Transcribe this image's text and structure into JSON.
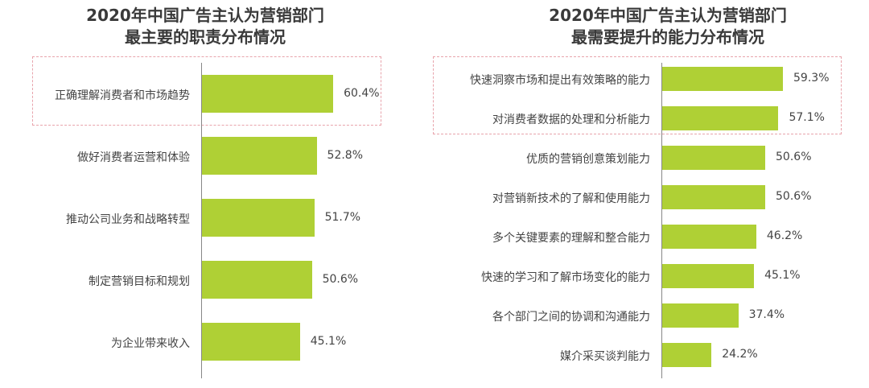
{
  "chart_data": [
    {
      "type": "bar",
      "orientation": "horizontal",
      "title": "2020年中国广告主认为营销部门\n最主要的职责分布情况",
      "title_lines": [
        "2020年中国广告主认为营销部门",
        "最主要的职责分布情况"
      ],
      "categories": [
        "正确理解消费者和市场趋势",
        "做好消费者运营和体验",
        "推动公司业务和战略转型",
        "制定营销目标和规划",
        "为企业带来收入"
      ],
      "values": [
        60.4,
        52.8,
        51.7,
        50.6,
        45.1
      ],
      "labels": [
        "60.4%",
        "52.8%",
        "51.7%",
        "50.6%",
        "45.1%"
      ],
      "highlighted": [
        "正确理解消费者和市场趋势"
      ],
      "unit": "%",
      "grid": false
    },
    {
      "type": "bar",
      "orientation": "horizontal",
      "title": "2020年中国广告主认为营销部门\n最需要提升的能力分布情况",
      "title_lines": [
        "2020年中国广告主认为营销部门",
        "最需要提升的能力分布情况"
      ],
      "categories": [
        "快速洞察市场和提出有效策略的能力",
        "对消费者数据的处理和分析能力",
        "优质的营销创意策划能力",
        "对营销新技术的了解和使用能力",
        "多个关键要素的理解和整合能力",
        "快速的学习和了解市场变化的能力",
        "各个部门之间的协调和沟通能力",
        "媒介采买谈判能力"
      ],
      "values": [
        59.3,
        57.1,
        50.6,
        50.6,
        46.2,
        45.1,
        37.4,
        24.2
      ],
      "labels": [
        "59.3%",
        "57.1%",
        "50.6%",
        "50.6%",
        "46.2%",
        "45.1%",
        "37.4%",
        "24.2%"
      ],
      "highlighted": [
        "快速洞察市场和提出有效策略的能力",
        "对消费者数据的处理和分析能力"
      ],
      "unit": "%",
      "grid": false
    }
  ],
  "colors": {
    "bar": "#afd035",
    "highlight_box": "#e8a4ac",
    "text": "#444444"
  }
}
